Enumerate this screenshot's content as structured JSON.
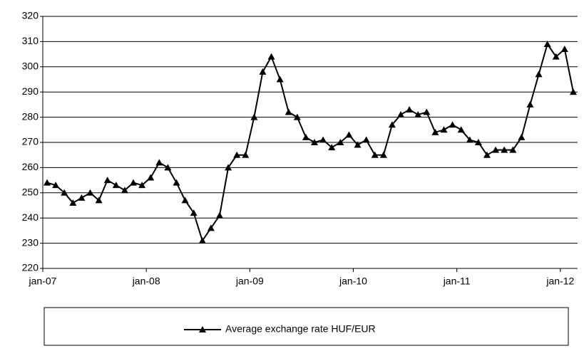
{
  "chart_data": {
    "type": "line",
    "categories": [
      "jan-07",
      null,
      null,
      null,
      null,
      null,
      null,
      null,
      null,
      null,
      null,
      null,
      "jan-08",
      null,
      null,
      null,
      null,
      null,
      null,
      null,
      null,
      null,
      null,
      null,
      "jan-09",
      null,
      null,
      null,
      null,
      null,
      null,
      null,
      null,
      null,
      null,
      null,
      "jan-10",
      null,
      null,
      null,
      null,
      null,
      null,
      null,
      null,
      null,
      null,
      null,
      "jan-11",
      null,
      null,
      null,
      null,
      null,
      null,
      null,
      null,
      null,
      null,
      null,
      "jan-12",
      null
    ],
    "series": [
      {
        "name": "Average exchange rate HUF/EUR",
        "color": "#000000",
        "values": [
          254,
          253,
          250,
          246,
          248,
          250,
          247,
          255,
          253,
          251,
          254,
          253,
          256,
          262,
          260,
          254,
          247,
          242,
          231,
          236,
          241,
          260,
          265,
          265,
          280,
          298,
          304,
          295,
          282,
          280,
          272,
          270,
          271,
          268,
          270,
          273,
          269,
          271,
          265,
          265,
          277,
          281,
          283,
          281,
          282,
          274,
          275,
          277,
          275,
          271,
          270,
          265,
          267,
          267,
          267,
          272,
          285,
          297,
          309,
          304,
          307,
          290
        ]
      }
    ],
    "ylim": [
      220,
      320
    ],
    "yticks": [
      220,
      230,
      240,
      250,
      260,
      270,
      280,
      290,
      300,
      310,
      320
    ],
    "grid": true,
    "legend": "bottom"
  }
}
